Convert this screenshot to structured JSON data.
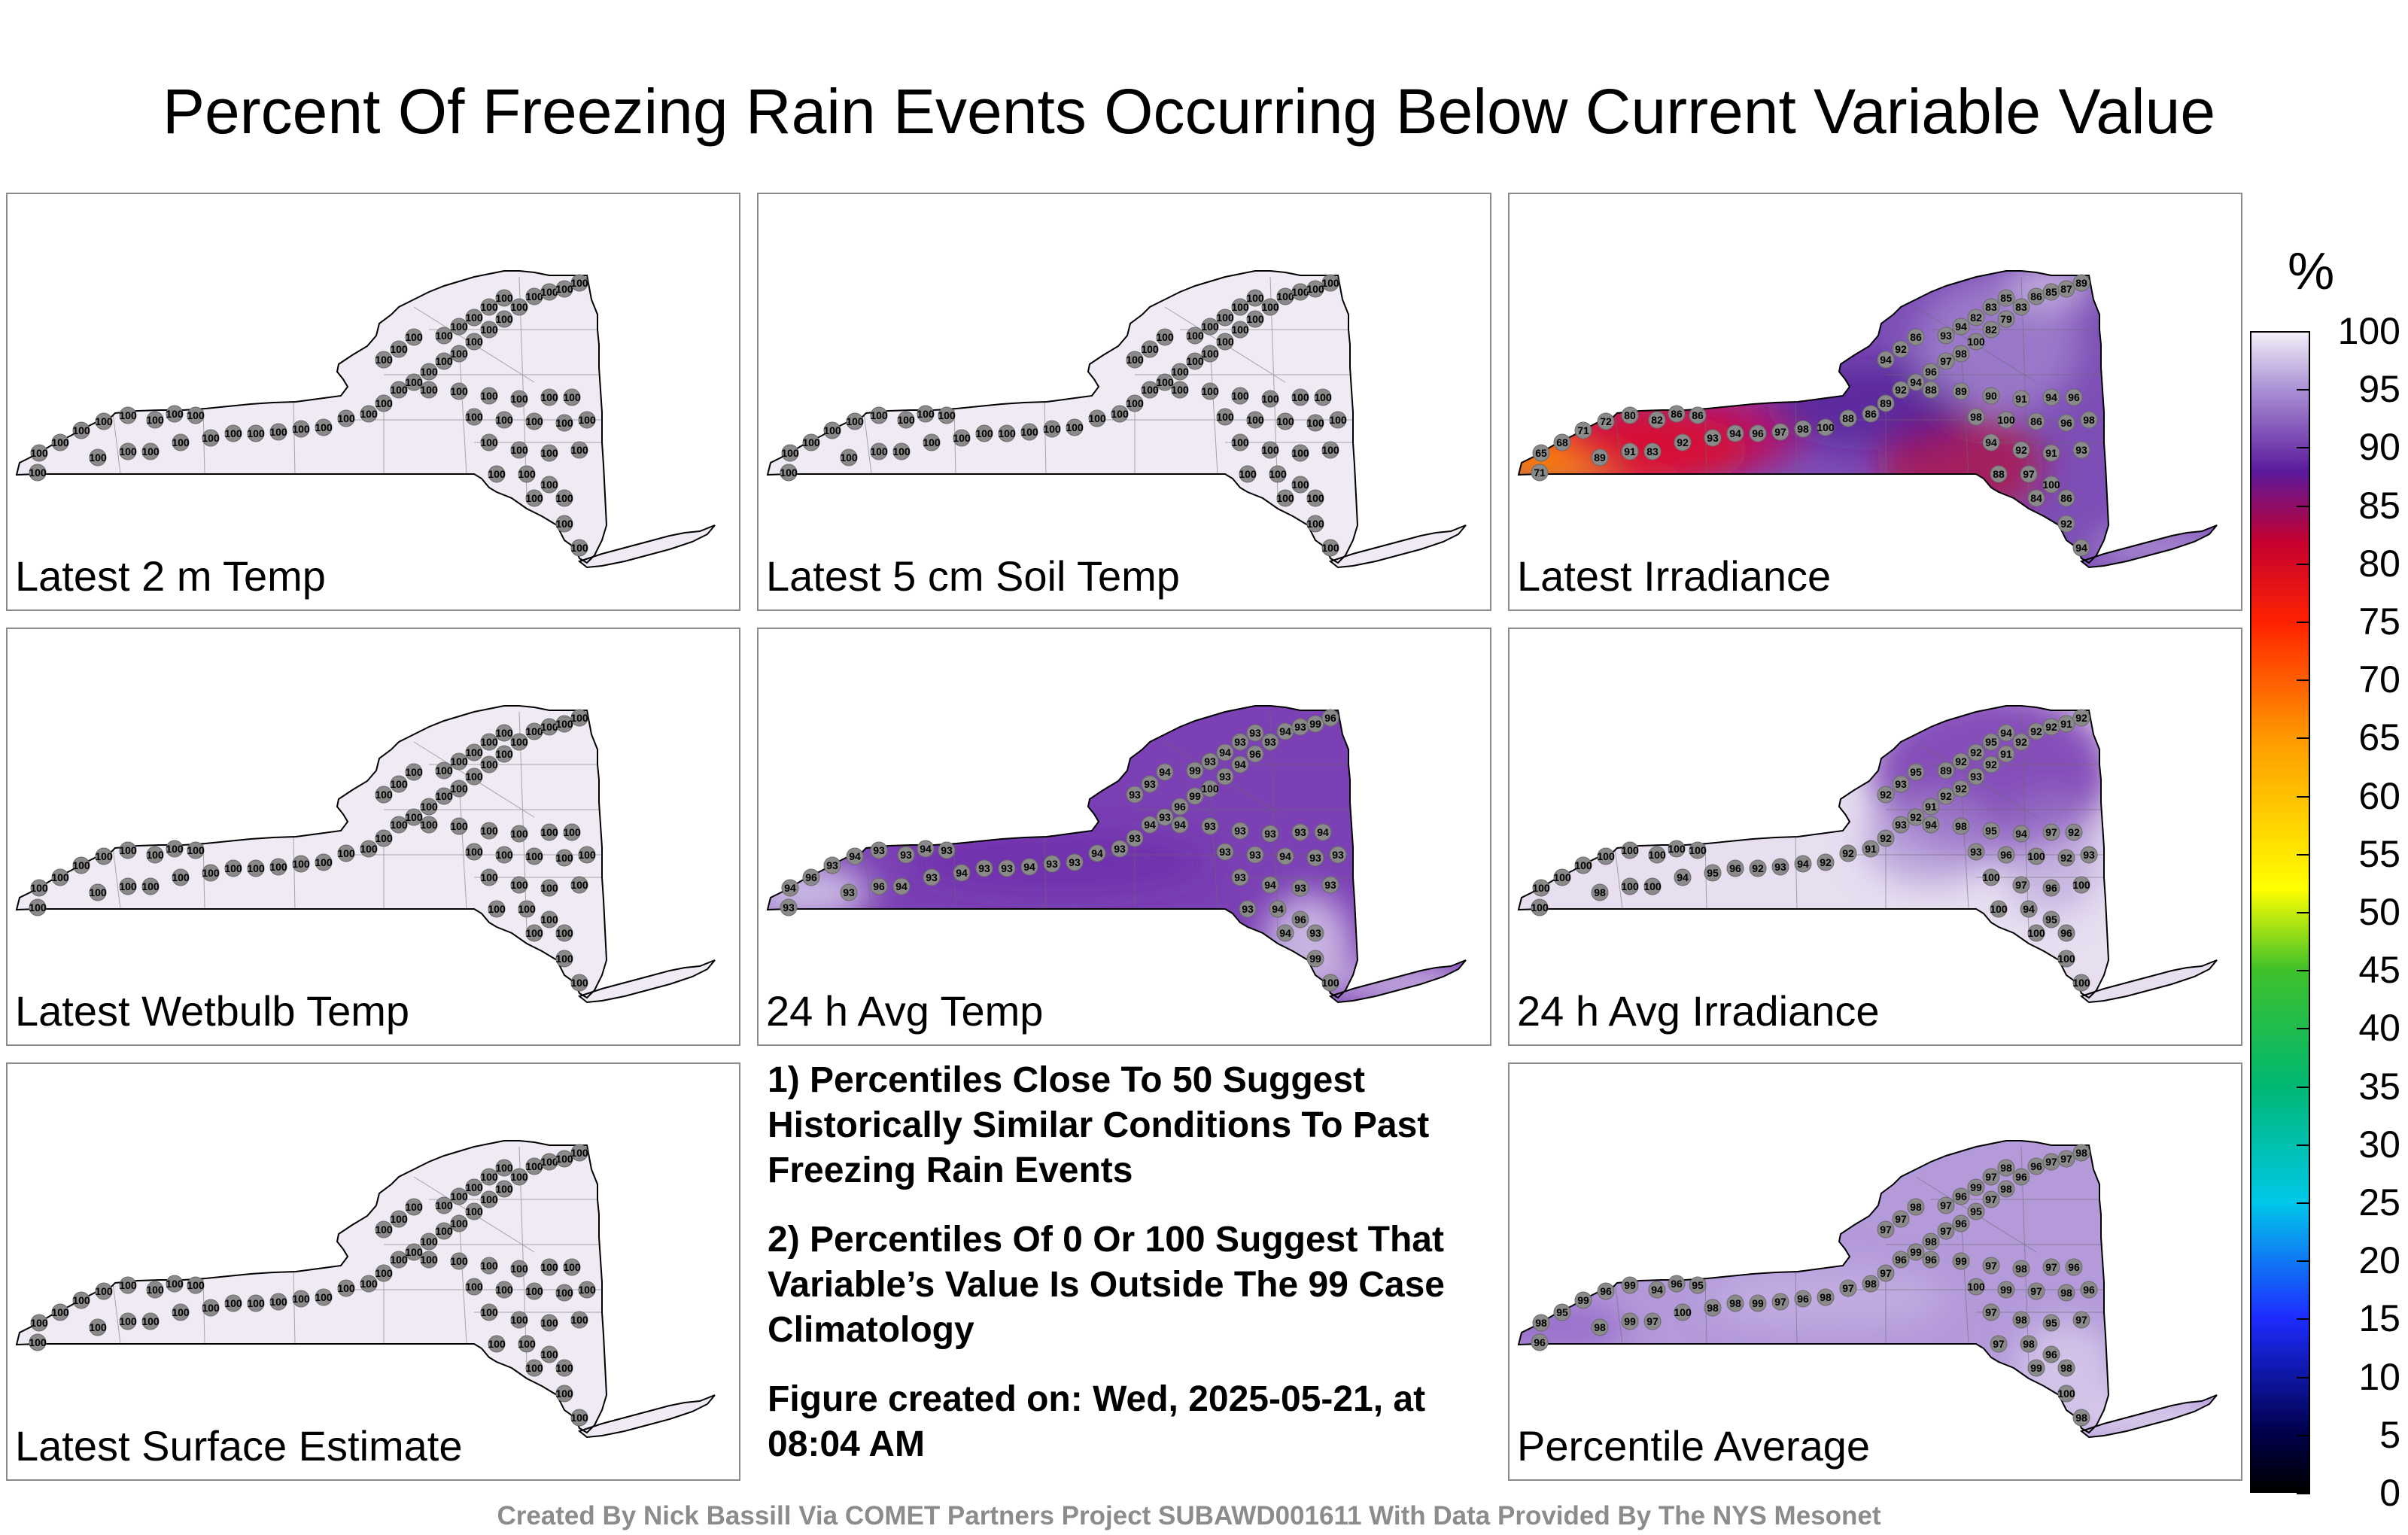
{
  "title": "Percent Of Freezing Rain Events Occurring Below Current Variable Value",
  "panels": [
    {
      "label": "Latest 2 m Temp",
      "fill": "uniform",
      "values": [
        100
      ]
    },
    {
      "label": "Latest 5 cm Soil Temp",
      "fill": "uniform",
      "values": [
        100
      ]
    },
    {
      "label": "Latest Irradiance",
      "fill": "irradiance",
      "values": [
        71,
        65,
        68,
        71,
        72,
        80,
        82,
        86,
        86,
        83,
        89,
        91,
        92,
        93,
        94,
        96,
        97,
        98,
        100,
        88,
        86,
        89,
        92,
        94,
        96,
        97,
        98,
        100,
        82,
        79,
        83,
        86,
        85,
        87,
        89,
        93,
        94,
        82,
        83,
        85,
        86,
        92,
        94,
        88,
        89,
        90,
        91,
        94,
        96,
        98,
        100,
        86,
        96,
        98,
        94,
        92,
        91,
        93,
        97,
        100,
        86,
        84,
        88,
        92,
        94
      ]
    },
    {
      "label": "Latest Wetbulb Temp",
      "fill": "uniform",
      "values": [
        100
      ]
    },
    {
      "label": "24 h Avg Temp",
      "fill": "avgtemp",
      "values": [
        93,
        94,
        96,
        93,
        94,
        93,
        93,
        94,
        93,
        94,
        93,
        96,
        93,
        94,
        93,
        93,
        94,
        93,
        93,
        94,
        93,
        93,
        94,
        93,
        96,
        99,
        100,
        93,
        94,
        96,
        93,
        94,
        93,
        99,
        96,
        99,
        93,
        94,
        93,
        93,
        94,
        93,
        93,
        94,
        93,
        93,
        93,
        93,
        94,
        93,
        93,
        94,
        93,
        93,
        93,
        94,
        93,
        93,
        94,
        96,
        93,
        94,
        93,
        99,
        100
      ]
    },
    {
      "label": "24 h Avg Irradiance",
      "fill": "avgirr",
      "values": [
        100,
        100,
        100,
        100,
        100,
        100,
        100,
        100,
        100,
        100,
        98,
        100,
        94,
        95,
        96,
        92,
        93,
        94,
        92,
        92,
        91,
        92,
        93,
        92,
        91,
        92,
        92,
        93,
        92,
        91,
        92,
        92,
        92,
        91,
        92,
        89,
        92,
        92,
        95,
        94,
        95,
        93,
        92,
        94,
        98,
        95,
        94,
        97,
        92,
        93,
        96,
        100,
        92,
        93,
        100,
        97,
        96,
        100,
        94,
        95,
        96,
        100,
        100,
        100,
        100
      ]
    },
    {
      "label": "Latest Surface Estimate",
      "fill": "uniform",
      "values": [
        100
      ]
    },
    {
      "label": "Percentile Average",
      "fill": "average",
      "values": [
        96,
        98,
        95,
        99,
        96,
        99,
        94,
        96,
        95,
        97,
        98,
        99,
        100,
        98,
        98,
        99,
        97,
        96,
        98,
        97,
        98,
        97,
        96,
        99,
        98,
        97,
        96,
        95,
        97,
        98,
        96,
        96,
        97,
        97,
        98,
        97,
        96,
        99,
        97,
        98,
        98,
        97,
        97,
        96,
        99,
        97,
        98,
        97,
        96,
        100,
        99,
        97,
        98,
        96,
        97,
        98,
        95,
        97,
        98,
        96,
        98,
        99,
        97,
        100,
        98
      ]
    }
  ],
  "notes": [
    "1) Percentiles Close To 50 Suggest Historically Similar Conditions To Past Freezing Rain Events",
    "2) Percentiles Of 0 Or 100 Suggest That Variable’s Value Is Outside The 99 Case Climatology",
    "Figure created on: Wed, 2025-05-21, at 08:04 AM"
  ],
  "credit": "Created By Nick Bassill Via COMET Partners Project SUBAWD001611 With Data Provided By The NYS Mesonet",
  "colorbar": {
    "unit": "%",
    "ticks": [
      "100",
      "95",
      "90",
      "85",
      "80",
      "75",
      "70",
      "65",
      "60",
      "55",
      "50",
      "45",
      "40",
      "35",
      "30",
      "25",
      "20",
      "15",
      "10",
      "5",
      "0"
    ],
    "stops": [
      {
        "value": 0,
        "color": "#000000"
      },
      {
        "value": 5,
        "color": "#00004a"
      },
      {
        "value": 15,
        "color": "#1d2cff"
      },
      {
        "value": 25,
        "color": "#00c8e8"
      },
      {
        "value": 35,
        "color": "#00b872"
      },
      {
        "value": 45,
        "color": "#3fc12a"
      },
      {
        "value": 52,
        "color": "#ffff00"
      },
      {
        "value": 65,
        "color": "#ff9a00"
      },
      {
        "value": 75,
        "color": "#ff2200"
      },
      {
        "value": 82,
        "color": "#c40030"
      },
      {
        "value": 88,
        "color": "#5b1a9c"
      },
      {
        "value": 95,
        "color": "#a98fd4"
      },
      {
        "value": 100,
        "color": "#f2eef7"
      }
    ]
  }
}
